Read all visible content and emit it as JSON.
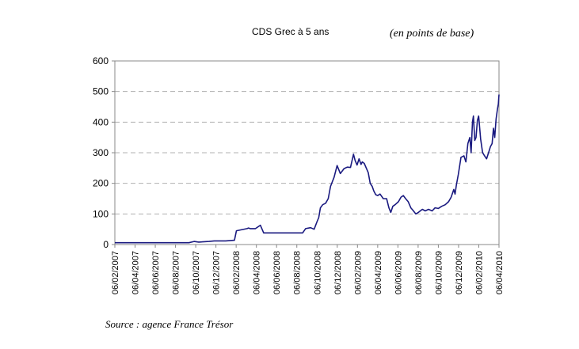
{
  "header": {
    "title": "CDS Grec à 5 ans",
    "unit": "(en points de base)"
  },
  "footer": {
    "source": "Source : agence France Trésor"
  },
  "chart_data": {
    "type": "line",
    "title": "CDS Grec à 5 ans",
    "xlabel": "",
    "ylabel": "",
    "ylim": [
      0,
      600
    ],
    "yticks": [
      0,
      100,
      200,
      300,
      400,
      500,
      600
    ],
    "grid": "horizontal dashed",
    "x_tick_labels": [
      "06/02/2007",
      "06/04/2007",
      "06/06/2007",
      "06/08/2007",
      "06/10/2007",
      "06/12/2007",
      "06/02/2008",
      "06/04/2008",
      "06/06/2008",
      "06/08/2008",
      "06/10/2008",
      "06/12/2008",
      "06/02/2009",
      "06/04/2009",
      "06/06/2009",
      "06/08/2009",
      "06/10/2009",
      "06/12/2009",
      "06/02/2010",
      "06/04/2010"
    ],
    "line_color": "#1a1a80",
    "series": [
      {
        "x": [
          "2007-02-06",
          "2007-08-01",
          "2007-09-20",
          "2007-10-06",
          "2007-10-20",
          "2007-11-20",
          "2007-12-06",
          "2008-01-10",
          "2008-02-06",
          "2008-02-12",
          "2008-03-15",
          "2008-03-20",
          "2008-03-25",
          "2008-04-10",
          "2008-04-25",
          "2008-05-05",
          "2008-09-01",
          "2008-09-10",
          "2008-09-25",
          "2008-10-06",
          "2008-10-15",
          "2008-10-20",
          "2008-10-25",
          "2008-11-01",
          "2008-11-10",
          "2008-11-18",
          "2008-11-25",
          "2008-12-06",
          "2008-12-15",
          "2008-12-25",
          "2009-01-05",
          "2009-01-15",
          "2009-01-25",
          "2009-02-03",
          "2009-02-08",
          "2009-02-14",
          "2009-02-20",
          "2009-02-26",
          "2009-03-02",
          "2009-03-08",
          "2009-03-14",
          "2009-03-20",
          "2009-03-26",
          "2009-04-01",
          "2009-04-06",
          "2009-04-12",
          "2009-04-18",
          "2009-04-25",
          "2009-05-05",
          "2009-05-15",
          "2009-05-22",
          "2009-05-28",
          "2009-06-03",
          "2009-06-10",
          "2009-06-20",
          "2009-06-28",
          "2009-07-05",
          "2009-07-12",
          "2009-07-20",
          "2009-07-28",
          "2009-08-05",
          "2009-08-12",
          "2009-08-20",
          "2009-09-01",
          "2009-09-10",
          "2009-09-20",
          "2009-10-01",
          "2009-10-10",
          "2009-10-20",
          "2009-10-30",
          "2009-11-10",
          "2009-11-20",
          "2009-11-28",
          "2009-12-06",
          "2009-12-10",
          "2009-12-14",
          "2009-12-20",
          "2009-12-28",
          "2010-01-06",
          "2010-01-12",
          "2010-01-18",
          "2010-01-24",
          "2010-01-28",
          "2010-02-01",
          "2010-02-04",
          "2010-02-08",
          "2010-02-12",
          "2010-02-16",
          "2010-02-20",
          "2010-02-26",
          "2010-03-04",
          "2010-03-10",
          "2010-03-16",
          "2010-03-22",
          "2010-03-28",
          "2010-04-02",
          "2010-04-06",
          "2010-04-10",
          "2010-04-14",
          "2010-04-18",
          "2010-04-21",
          "2010-04-23"
        ],
        "y": [
          6,
          6,
          6,
          10,
          8,
          10,
          12,
          12,
          14,
          45,
          52,
          54,
          52,
          52,
          63,
          38,
          38,
          52,
          55,
          50,
          75,
          88,
          120,
          130,
          135,
          150,
          190,
          220,
          258,
          232,
          248,
          253,
          252,
          295,
          275,
          260,
          280,
          262,
          270,
          265,
          250,
          235,
          200,
          190,
          175,
          163,
          160,
          165,
          150,
          150,
          120,
          105,
          125,
          130,
          140,
          155,
          160,
          150,
          140,
          120,
          110,
          100,
          105,
          115,
          110,
          115,
          110,
          120,
          118,
          125,
          130,
          140,
          155,
          180,
          165,
          195,
          230,
          285,
          290,
          270,
          330,
          350,
          300,
          400,
          420,
          340,
          350,
          405,
          420,
          345,
          300,
          290,
          280,
          300,
          320,
          330,
          380,
          350,
          410,
          440,
          460,
          490
        ]
      }
    ]
  }
}
